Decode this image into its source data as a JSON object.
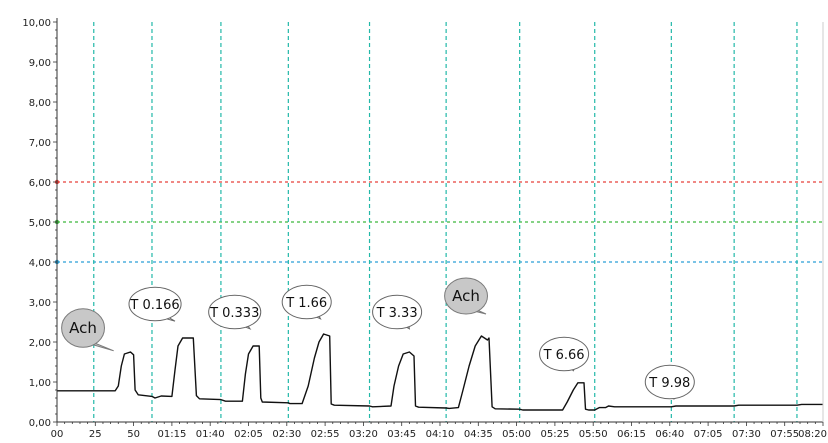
{
  "chart_data": {
    "type": "line",
    "title": "",
    "xlabel": "",
    "ylabel": "",
    "ylim": [
      0,
      10
    ],
    "xlim": [
      0,
      500
    ],
    "grid": false,
    "y_ticks": [
      "0,00",
      "1,00",
      "2,00",
      "3,00",
      "4,00",
      "5,00",
      "6,00",
      "7,00",
      "8,00",
      "9,00",
      "10,00"
    ],
    "x_ticks": [
      {
        "v": 0,
        "label": "00"
      },
      {
        "v": 25,
        "label": "25"
      },
      {
        "v": 50,
        "label": "50"
      },
      {
        "v": 75,
        "label": "01:15"
      },
      {
        "v": 100,
        "label": "01:40"
      },
      {
        "v": 125,
        "label": "02:05"
      },
      {
        "v": 150,
        "label": "02:30"
      },
      {
        "v": 175,
        "label": "02:55"
      },
      {
        "v": 200,
        "label": "03:20"
      },
      {
        "v": 225,
        "label": "03:45"
      },
      {
        "v": 250,
        "label": "04:10"
      },
      {
        "v": 275,
        "label": "04:35"
      },
      {
        "v": 300,
        "label": "05:00"
      },
      {
        "v": 325,
        "label": "05:25"
      },
      {
        "v": 350,
        "label": "05:50"
      },
      {
        "v": 375,
        "label": "06:15"
      },
      {
        "v": 400,
        "label": "06:40"
      },
      {
        "v": 425,
        "label": "07:05"
      },
      {
        "v": 450,
        "label": "07:30"
      },
      {
        "v": 475,
        "label": "07:55"
      },
      {
        "v": 500,
        "label": "08:20"
      }
    ],
    "threshold_lines": [
      {
        "y": 6.0,
        "color": "#e8413a"
      },
      {
        "y": 5.0,
        "color": "#3cb83c"
      },
      {
        "y": 4.0,
        "color": "#2a9fd6"
      }
    ],
    "marker_lines": {
      "color": "#22b8a8",
      "x": [
        24,
        62,
        107,
        151,
        204,
        254,
        302,
        351,
        401,
        442,
        483
      ]
    },
    "series": [
      {
        "color": "#111111",
        "points": [
          [
            0,
            0.78
          ],
          [
            38,
            0.78
          ],
          [
            40,
            0.9
          ],
          [
            42,
            1.4
          ],
          [
            44,
            1.7
          ],
          [
            48,
            1.75
          ],
          [
            50,
            1.68
          ],
          [
            51,
            0.8
          ],
          [
            53,
            0.68
          ],
          [
            62,
            0.64
          ],
          [
            64,
            0.6
          ],
          [
            68,
            0.65
          ],
          [
            75,
            0.64
          ],
          [
            77,
            1.3
          ],
          [
            79,
            1.9
          ],
          [
            82,
            2.1
          ],
          [
            89,
            2.1
          ],
          [
            91,
            0.66
          ],
          [
            93,
            0.58
          ],
          [
            107,
            0.56
          ],
          [
            110,
            0.52
          ],
          [
            121,
            0.52
          ],
          [
            123,
            1.2
          ],
          [
            125,
            1.7
          ],
          [
            128,
            1.9
          ],
          [
            132,
            1.9
          ],
          [
            133,
            0.6
          ],
          [
            134,
            0.5
          ],
          [
            151,
            0.48
          ],
          [
            152,
            0.46
          ],
          [
            160,
            0.46
          ],
          [
            164,
            0.9
          ],
          [
            168,
            1.6
          ],
          [
            171,
            2.0
          ],
          [
            174,
            2.2
          ],
          [
            178,
            2.15
          ],
          [
            179,
            0.45
          ],
          [
            181,
            0.42
          ],
          [
            204,
            0.4
          ],
          [
            206,
            0.38
          ],
          [
            218,
            0.4
          ],
          [
            220,
            0.9
          ],
          [
            223,
            1.4
          ],
          [
            226,
            1.7
          ],
          [
            230,
            1.75
          ],
          [
            233,
            1.65
          ],
          [
            234,
            0.4
          ],
          [
            236,
            0.37
          ],
          [
            254,
            0.35
          ],
          [
            256,
            0.34
          ],
          [
            262,
            0.36
          ],
          [
            265,
            0.8
          ],
          [
            269,
            1.4
          ],
          [
            273,
            1.9
          ],
          [
            277,
            2.15
          ],
          [
            281,
            2.05
          ],
          [
            282,
            2.1
          ],
          [
            284,
            0.38
          ],
          [
            286,
            0.33
          ],
          [
            302,
            0.32
          ],
          [
            304,
            0.3
          ],
          [
            330,
            0.3
          ],
          [
            333,
            0.5
          ],
          [
            337,
            0.8
          ],
          [
            340,
            0.98
          ],
          [
            344,
            0.98
          ],
          [
            345,
            0.32
          ],
          [
            347,
            0.3
          ],
          [
            351,
            0.3
          ],
          [
            353,
            0.34
          ],
          [
            354,
            0.36
          ],
          [
            358,
            0.36
          ],
          [
            360,
            0.4
          ],
          [
            364,
            0.38
          ],
          [
            401,
            0.38
          ],
          [
            404,
            0.4
          ],
          [
            442,
            0.4
          ],
          [
            445,
            0.42
          ],
          [
            483,
            0.42
          ],
          [
            486,
            0.44
          ],
          [
            500,
            0.44
          ]
        ]
      }
    ],
    "annotations": [
      {
        "text": "Ach",
        "style": "gray",
        "cx": 17,
        "cy": 2.35,
        "rx": 14,
        "ry": 0.48,
        "tx": 37,
        "ty": 1.78
      },
      {
        "text": "T 0.166",
        "style": "white",
        "cx": 64,
        "cy": 2.95,
        "rx": 17,
        "ry": 0.42,
        "tx": 77,
        "ty": 2.52
      },
      {
        "text": "T 0.333",
        "style": "white",
        "cx": 116,
        "cy": 2.75,
        "rx": 17,
        "ry": 0.42,
        "tx": 126,
        "ty": 2.33
      },
      {
        "text": "T 1.66",
        "style": "white",
        "cx": 163,
        "cy": 3.0,
        "rx": 16,
        "ry": 0.42,
        "tx": 172,
        "ty": 2.58
      },
      {
        "text": "T 3.33",
        "style": "white",
        "cx": 222,
        "cy": 2.75,
        "rx": 16,
        "ry": 0.42,
        "tx": 230,
        "ty": 2.33
      },
      {
        "text": "Ach",
        "style": "gray",
        "cx": 267,
        "cy": 3.15,
        "rx": 14,
        "ry": 0.45,
        "tx": 280,
        "ty": 2.7
      },
      {
        "text": "T 6.66",
        "style": "white",
        "cx": 331,
        "cy": 1.7,
        "rx": 16,
        "ry": 0.42,
        "tx": 337,
        "ty": 1.28
      },
      {
        "text": "T 9.98",
        "style": "white",
        "cx": 400,
        "cy": 1.0,
        "rx": 16,
        "ry": 0.42,
        "tx": 403,
        "ty": 0.58
      }
    ]
  }
}
